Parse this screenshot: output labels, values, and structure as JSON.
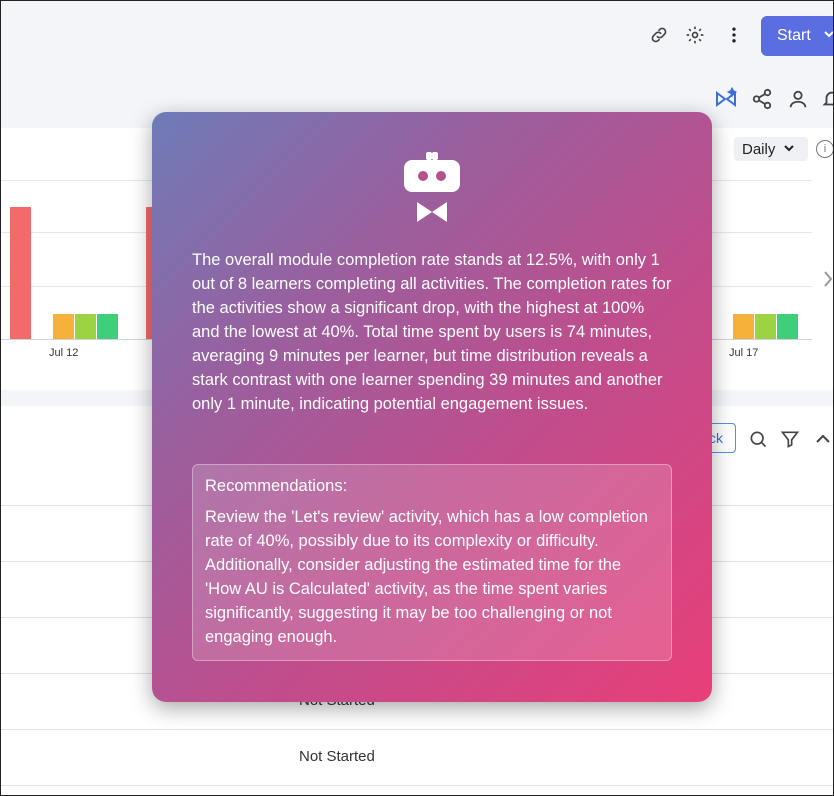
{
  "header": {
    "start_label": "Start",
    "icons": [
      "link-icon",
      "gear-icon",
      "more-vertical-icon",
      "chevron-down-icon"
    ]
  },
  "toolbar": {
    "icons": [
      "ai-sparkle-icon",
      "share-icon",
      "user-icon",
      "bell-icon"
    ]
  },
  "chart": {
    "period_select": "Daily",
    "info_label": "i"
  },
  "chart_data": {
    "type": "bar",
    "categories": [
      "Jul 12",
      "Jul 17"
    ],
    "series_colors": [
      "#f26b6b",
      "#f6b13b",
      "#9bd343",
      "#3fcf7a"
    ],
    "visible_tick_labels": [
      "Jul 12",
      "Jul 17"
    ],
    "grid": true
  },
  "table": {
    "button_partial_label": "ck",
    "rows": [
      {
        "status": ""
      },
      {
        "status": ""
      },
      {
        "status": ""
      },
      {
        "status": "Not Started"
      },
      {
        "status": "Not Started"
      }
    ]
  },
  "ai_panel": {
    "summary": "The overall module completion rate stands at 12.5%, with only 1 out of 8 learners completing all activities. The completion rates for the activities show a significant drop, with the highest at 100% and the lowest at 40%. Total time spent by users is 74 minutes, averaging 9 minutes per learner, but time distribution reveals a stark contrast with one learner spending 39 minutes and another only 1 minute, indicating potential engagement issues.",
    "recommendations_title": "Recommendations:",
    "recommendations_text": "Review the 'Let's review' activity, which has a low completion rate of 40%, possibly due to its complexity or difficulty. Additionally, consider adjusting the estimated time for the 'How AU is Calculated' activity, as the time spent varies significantly, suggesting it may be too challenging or not engaging enough."
  }
}
